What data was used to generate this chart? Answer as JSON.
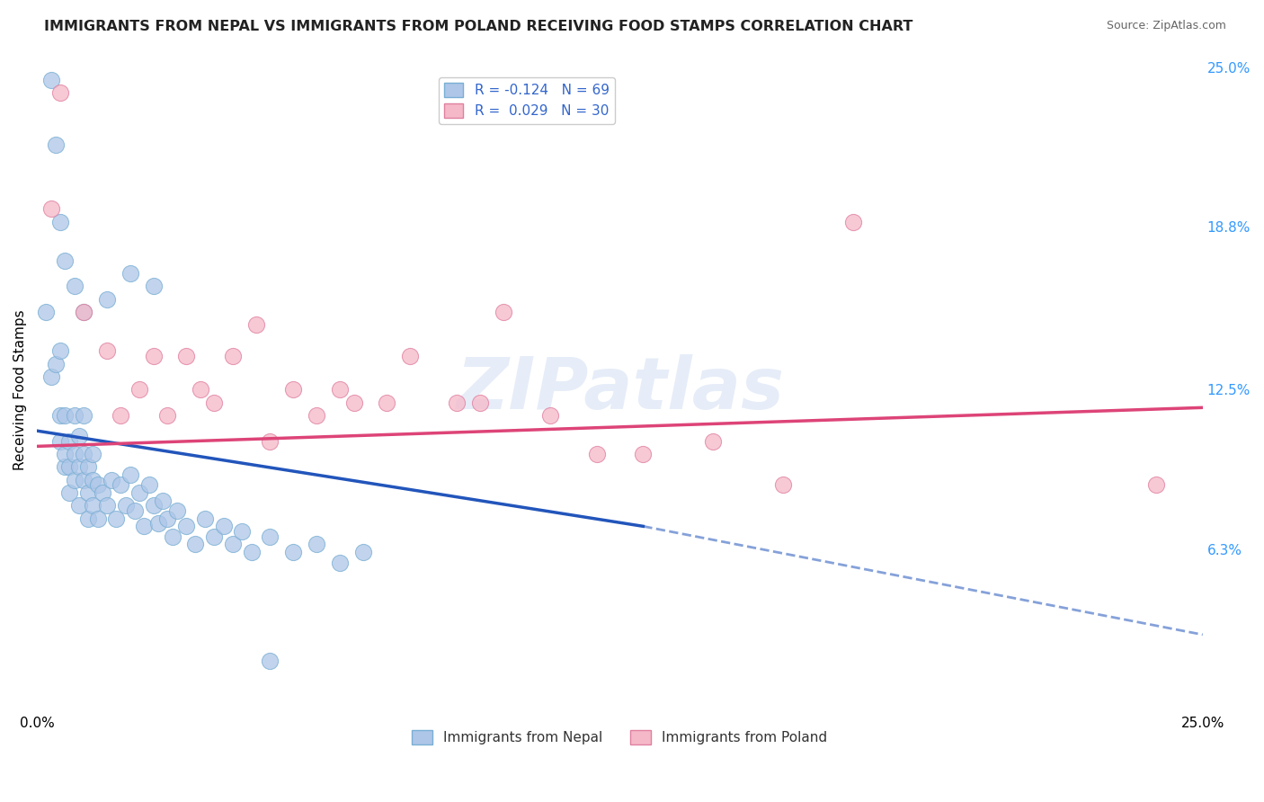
{
  "title": "IMMIGRANTS FROM NEPAL VS IMMIGRANTS FROM POLAND RECEIVING FOOD STAMPS CORRELATION CHART",
  "source": "Source: ZipAtlas.com",
  "ylabel": "Receiving Food Stamps",
  "xlim": [
    0.0,
    0.25
  ],
  "ylim": [
    0.0,
    0.25
  ],
  "ytick_labels_right": [
    "6.3%",
    "12.5%",
    "18.8%",
    "25.0%"
  ],
  "ytick_positions_right": [
    0.063,
    0.125,
    0.188,
    0.25
  ],
  "nepal_color": "#aec6e8",
  "nepal_edge_color": "#7aafd4",
  "poland_color": "#f5b8c8",
  "poland_edge_color": "#e080a0",
  "nepal_line_color": "#2255bb",
  "poland_line_color": "#dd4477",
  "legend_nepal_label": "R = -0.124   N = 69",
  "legend_poland_label": "R =  0.029   N = 30",
  "legend_nepal_short": "Immigrants from Nepal",
  "legend_poland_short": "Immigrants from Poland",
  "watermark": "ZIPatlas",
  "background_color": "#ffffff",
  "grid_color": "#cccccc",
  "nepal_line": [
    0.0,
    0.109,
    0.13,
    0.072
  ],
  "nepal_line_dashed": [
    0.13,
    0.072,
    0.25,
    0.03
  ],
  "poland_line": [
    0.0,
    0.103,
    0.25,
    0.118
  ],
  "nepal_points": [
    [
      0.002,
      0.155
    ],
    [
      0.003,
      0.13
    ],
    [
      0.004,
      0.135
    ],
    [
      0.005,
      0.115
    ],
    [
      0.005,
      0.105
    ],
    [
      0.005,
      0.14
    ],
    [
      0.006,
      0.095
    ],
    [
      0.006,
      0.1
    ],
    [
      0.006,
      0.115
    ],
    [
      0.007,
      0.085
    ],
    [
      0.007,
      0.095
    ],
    [
      0.007,
      0.105
    ],
    [
      0.008,
      0.09
    ],
    [
      0.008,
      0.1
    ],
    [
      0.008,
      0.115
    ],
    [
      0.009,
      0.08
    ],
    [
      0.009,
      0.095
    ],
    [
      0.009,
      0.107
    ],
    [
      0.01,
      0.09
    ],
    [
      0.01,
      0.1
    ],
    [
      0.01,
      0.115
    ],
    [
      0.011,
      0.085
    ],
    [
      0.011,
      0.095
    ],
    [
      0.011,
      0.075
    ],
    [
      0.012,
      0.09
    ],
    [
      0.012,
      0.08
    ],
    [
      0.012,
      0.1
    ],
    [
      0.013,
      0.088
    ],
    [
      0.013,
      0.075
    ],
    [
      0.014,
      0.085
    ],
    [
      0.015,
      0.08
    ],
    [
      0.016,
      0.09
    ],
    [
      0.017,
      0.075
    ],
    [
      0.018,
      0.088
    ],
    [
      0.019,
      0.08
    ],
    [
      0.02,
      0.092
    ],
    [
      0.021,
      0.078
    ],
    [
      0.022,
      0.085
    ],
    [
      0.023,
      0.072
    ],
    [
      0.024,
      0.088
    ],
    [
      0.025,
      0.08
    ],
    [
      0.026,
      0.073
    ],
    [
      0.027,
      0.082
    ],
    [
      0.028,
      0.075
    ],
    [
      0.029,
      0.068
    ],
    [
      0.03,
      0.078
    ],
    [
      0.032,
      0.072
    ],
    [
      0.034,
      0.065
    ],
    [
      0.036,
      0.075
    ],
    [
      0.038,
      0.068
    ],
    [
      0.04,
      0.072
    ],
    [
      0.042,
      0.065
    ],
    [
      0.044,
      0.07
    ],
    [
      0.046,
      0.062
    ],
    [
      0.05,
      0.068
    ],
    [
      0.055,
      0.062
    ],
    [
      0.06,
      0.065
    ],
    [
      0.065,
      0.058
    ],
    [
      0.07,
      0.062
    ],
    [
      0.004,
      0.22
    ],
    [
      0.006,
      0.175
    ],
    [
      0.008,
      0.165
    ],
    [
      0.01,
      0.155
    ],
    [
      0.015,
      0.16
    ],
    [
      0.005,
      0.19
    ],
    [
      0.003,
      0.245
    ],
    [
      0.02,
      0.17
    ],
    [
      0.025,
      0.165
    ],
    [
      0.05,
      0.02
    ]
  ],
  "poland_points": [
    [
      0.003,
      0.195
    ],
    [
      0.01,
      0.155
    ],
    [
      0.015,
      0.14
    ],
    [
      0.018,
      0.115
    ],
    [
      0.022,
      0.125
    ],
    [
      0.025,
      0.138
    ],
    [
      0.028,
      0.115
    ],
    [
      0.032,
      0.138
    ],
    [
      0.035,
      0.125
    ],
    [
      0.038,
      0.12
    ],
    [
      0.042,
      0.138
    ],
    [
      0.047,
      0.15
    ],
    [
      0.05,
      0.105
    ],
    [
      0.055,
      0.125
    ],
    [
      0.06,
      0.115
    ],
    [
      0.065,
      0.125
    ],
    [
      0.068,
      0.12
    ],
    [
      0.075,
      0.12
    ],
    [
      0.08,
      0.138
    ],
    [
      0.09,
      0.12
    ],
    [
      0.095,
      0.12
    ],
    [
      0.1,
      0.155
    ],
    [
      0.11,
      0.115
    ],
    [
      0.12,
      0.1
    ],
    [
      0.13,
      0.1
    ],
    [
      0.145,
      0.105
    ],
    [
      0.16,
      0.088
    ],
    [
      0.175,
      0.19
    ],
    [
      0.005,
      0.24
    ],
    [
      0.24,
      0.088
    ]
  ]
}
